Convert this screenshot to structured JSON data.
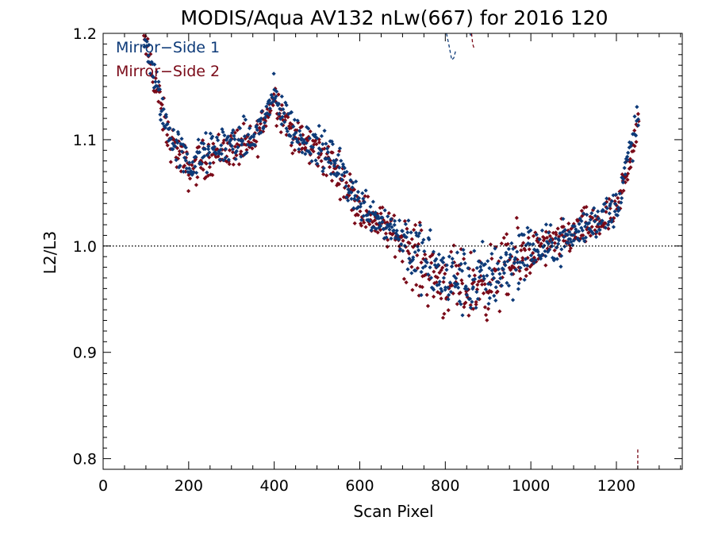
{
  "chart_data": {
    "type": "scatter",
    "title": "MODIS/Aqua AV132 nLw(667) for 2016 120",
    "xlabel": "Scan Pixel",
    "ylabel": "L2/L3",
    "xlim": [
      0,
      1354
    ],
    "ylim": [
      0.79,
      1.2
    ],
    "xticks": [
      0,
      200,
      400,
      600,
      800,
      1000,
      1200
    ],
    "xtick_labels": [
      "0",
      "200",
      "400",
      "600",
      "800",
      "1000",
      "1200"
    ],
    "yticks": [
      0.8,
      0.9,
      1.0,
      1.1,
      1.2
    ],
    "ytick_labels": [
      "0.8",
      "0.9",
      "1.0",
      "1.1",
      "1.2"
    ],
    "reference_line": 1.0,
    "legend_position": "top-left",
    "colors": {
      "ms1": "#0d3a78",
      "ms2": "#7a0a18"
    },
    "series": [
      {
        "name": "Mirror−Side 1",
        "marker": "diamond",
        "trend": [
          [
            100,
            1.19
          ],
          [
            150,
            1.11
          ],
          [
            200,
            1.075
          ],
          [
            230,
            1.085
          ],
          [
            280,
            1.095
          ],
          [
            350,
            1.1
          ],
          [
            400,
            1.14
          ],
          [
            450,
            1.105
          ],
          [
            500,
            1.095
          ],
          [
            550,
            1.075
          ],
          [
            600,
            1.04
          ],
          [
            650,
            1.025
          ],
          [
            700,
            1.01
          ],
          [
            750,
            0.985
          ],
          [
            800,
            0.97
          ],
          [
            850,
            0.965
          ],
          [
            900,
            0.97
          ],
          [
            950,
            0.985
          ],
          [
            1000,
            0.995
          ],
          [
            1050,
            1.0
          ],
          [
            1100,
            1.01
          ],
          [
            1150,
            1.025
          ],
          [
            1200,
            1.035
          ],
          [
            1250,
            1.12
          ]
        ],
        "extra_lines": [
          {
            "x": [
              800,
              808,
              815,
              820,
              825
            ],
            "y": [
              1.205,
              1.19,
              1.175,
              1.177,
              1.185
            ]
          },
          {
            "x": [
              855,
              859,
              863
            ],
            "y": [
              1.205,
              1.198,
              1.205
            ]
          }
        ]
      },
      {
        "name": "Mirror−Side 2",
        "marker": "diamond",
        "trend": [
          [
            100,
            1.19
          ],
          [
            150,
            1.105
          ],
          [
            200,
            1.07
          ],
          [
            230,
            1.08
          ],
          [
            280,
            1.09
          ],
          [
            350,
            1.095
          ],
          [
            400,
            1.14
          ],
          [
            450,
            1.1
          ],
          [
            500,
            1.09
          ],
          [
            550,
            1.07
          ],
          [
            600,
            1.035
          ],
          [
            650,
            1.02
          ],
          [
            700,
            1.005
          ],
          [
            750,
            0.98
          ],
          [
            800,
            0.965
          ],
          [
            850,
            0.96
          ],
          [
            900,
            0.965
          ],
          [
            950,
            0.98
          ],
          [
            1000,
            0.995
          ],
          [
            1050,
            1.0
          ],
          [
            1100,
            1.012
          ],
          [
            1150,
            1.02
          ],
          [
            1200,
            1.03
          ],
          [
            1250,
            1.115
          ]
        ],
        "extra_lines": [
          {
            "x": [
              860,
              864,
              868
            ],
            "y": [
              1.205,
              1.19,
              1.185
            ]
          },
          {
            "x": [
              1250,
              1250
            ],
            "y": [
              0.79,
              0.81
            ]
          }
        ]
      }
    ]
  }
}
